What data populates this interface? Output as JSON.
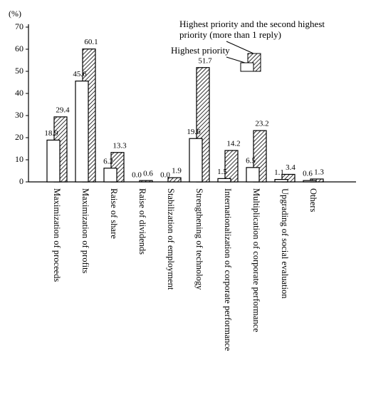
{
  "chart_data": {
    "type": "bar",
    "y_label": "(%)",
    "categories": [
      "Maximization of proceeds",
      "Maximization of profits",
      "Raise of share",
      "Raise of dividends",
      "Stabilization of employment",
      "Strengthening of technology",
      "Internationalization of corporate performance",
      "Multiplication of corporate performance",
      "Upgrading of social evaluation",
      "Others"
    ],
    "series": [
      {
        "name": "Highest priority",
        "color": "#ffffff",
        "values": [
          18.9,
          45.6,
          6.2,
          0.0,
          0.0,
          19.6,
          1.5,
          6.5,
          1.1,
          0.6
        ],
        "value_labels": [
          "18.9",
          "45.6",
          "6.2",
          "0.0",
          "0.0",
          "19.6",
          "1.5",
          "6.5",
          "1.1",
          "0.6"
        ]
      },
      {
        "name": "Highest priority and the second highest priority (more than 1 reply)",
        "color": "hatched",
        "values": [
          29.4,
          60.1,
          13.3,
          0.6,
          1.9,
          51.7,
          14.2,
          23.2,
          3.4,
          1.3
        ],
        "value_labels": [
          "29.4",
          "60.1",
          "13.3",
          "0.6",
          "1.9",
          "51.7",
          "14.2",
          "23.2",
          "3.4",
          "1.3"
        ]
      }
    ],
    "ylim": [
      0,
      70
    ],
    "yticks": [
      0,
      10,
      20,
      30,
      40,
      50,
      60,
      70
    ]
  }
}
